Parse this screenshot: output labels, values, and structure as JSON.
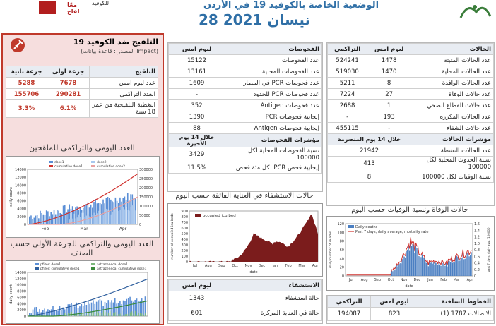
{
  "header": {
    "title": "الوضعية الخاصة بالكوفيد 19 في الأردن",
    "date": "28 نيسان 2021",
    "logo_left_text": "معًا",
    "logo_left_sub": "لقاح",
    "logo_mid_text": "للكوفيد"
  },
  "vaccination": {
    "title": "التلقيح ضد الكوفيد 19",
    "source": "(المصدر : قاعدة بيانات Impact)",
    "table": {
      "headers": [
        "التلقيح",
        "جرعة اولى",
        "جرعة ثانية"
      ],
      "rows": [
        {
          "label": "عدد ليوم امس",
          "dose1": "7678",
          "dose2": "5288"
        },
        {
          "label": "العدد التراكمي",
          "dose1": "290281",
          "dose2": "155706"
        },
        {
          "label": "التغطية التلقيحية من عمر 18 سنة",
          "dose1": "6.1%",
          "dose2": "3.3%"
        }
      ]
    },
    "chart1_title": "العدد اليومي والتراكمي للملقحين",
    "chart1_legend": [
      "dose1",
      "dose2",
      "cumulative dose1",
      "cumulative dose2"
    ],
    "chart1_yticks_left": [
      "14000",
      "12000",
      "10000",
      "8000",
      "6000",
      "4000",
      "2000",
      "0"
    ],
    "chart1_yticks_right": [
      "300000",
      "250000",
      "200000",
      "150000",
      "100000",
      "50000",
      "0"
    ],
    "chart1_xticks": [
      "Feb",
      "Mar",
      "Apr"
    ],
    "chart1_ylabel": "daily count",
    "chart2_title": "العدد اليومي والتراكمي للجرعة الأولى حسب الصنف",
    "chart2_legend": [
      "pfizer: dose1",
      "astrazeneca: dose1",
      "pfizer: cumulative dose1",
      "astrazeneca: cumulative dose1"
    ],
    "chart2_yticks_left": [
      "14000",
      "12000",
      "10000",
      "8000",
      "6000",
      "4000",
      "2000",
      "0"
    ],
    "chart2_ylabel": "daily count"
  },
  "tests": {
    "header": "الفحوصات",
    "subheader": "ليوم امس",
    "rows": [
      {
        "label": "عدد الفحوصات",
        "value": "15122"
      },
      {
        "label": "عدد الفحوصات المحلية",
        "value": "13161"
      },
      {
        "label": "عدد فحوصات PCR في المطار",
        "value": "1609"
      },
      {
        "label": "عدد فحوصات PCR للحدود",
        "value": "-"
      },
      {
        "label": "عدد فحوصات Antigen",
        "value": "352"
      },
      {
        "label": "إيجابية فحوصات PCR",
        "value": "1390"
      },
      {
        "label": "إيجابية فحوصات Antigen",
        "value": "88"
      }
    ],
    "indicators_header": "مؤشرات الفحوصات",
    "indicators_sub": "خلال 14 يوم الأخيرة",
    "indicators": [
      {
        "label": "نسبة الفحوصات المحلية لكل 100000",
        "value": "3429"
      },
      {
        "label": "إيجابية فحص PCR لكل مئة فحص",
        "value": "11.5%"
      }
    ]
  },
  "icu_chart": {
    "title": "حالات الاستشفاء في العناية الفائقة حسب اليوم",
    "legend": "occupied icu bed",
    "ylabel": "number of occupied icu beds",
    "xlabel": "date",
    "yticks": [
      "900",
      "800",
      "700",
      "600",
      "500",
      "400",
      "300",
      "200",
      "100",
      "0"
    ],
    "xticks": [
      "Jul",
      "Aug",
      "Sep",
      "Oct",
      "Nov",
      "Dec",
      "Jan",
      "Feb",
      "Mar",
      "Apr"
    ]
  },
  "hospital": {
    "header": "الاستشفاء",
    "subheader": "ليوم امس",
    "rows": [
      {
        "label": "حالة استشفاء",
        "value": "1343"
      },
      {
        "label": "حالة في العناية المركزة",
        "value": "601"
      }
    ]
  },
  "cases": {
    "header": "الحالات",
    "col_yesterday": "ليوم امس",
    "col_cumulative": "التراكمي",
    "rows": [
      {
        "label": "عدد الحالات المثبتة",
        "yesterday": "1478",
        "cumulative": "524241"
      },
      {
        "label": "عدد الحالات المحلية",
        "yesterday": "1470",
        "cumulative": "519030"
      },
      {
        "label": "عدد الحالات الوافدة",
        "yesterday": "8",
        "cumulative": "5211"
      },
      {
        "label": "عدد حالات الوفاة",
        "yesterday": "27",
        "cumulative": "7224"
      },
      {
        "label": "عدد حالات القطاع الصحي",
        "yesterday": "1",
        "cumulative": "2688"
      },
      {
        "label": "عدد الحالات المكرره",
        "yesterday": "193",
        "cumulative": "-"
      },
      {
        "label": "عدد حالات الشفاء",
        "yesterday": "-",
        "cumulative": "455115"
      }
    ],
    "indicators_header": "مؤشرات الحالات",
    "indicators_sub": "خلال 14 يوم المنصرمة",
    "indicators": [
      {
        "label": "عدد الحالات النشطة",
        "value": "21942"
      },
      {
        "label": "نسبة الحدوث المحلية لكل 100000",
        "value": "413"
      },
      {
        "label": "نسبة الوفيات لكل 100000",
        "value": "8"
      }
    ]
  },
  "deaths_chart": {
    "title": "حالات الوفاة ونسبة الوفيات حسب اليوم",
    "legend": [
      "Daily deaths",
      "Past 7 days, daily average, mortality rate"
    ],
    "ylabel": "daily number of deaths",
    "ylabel_right": "past 7 days, daily avg, /100000",
    "xlabel": "date",
    "yticks": [
      "120",
      "100",
      "80",
      "60",
      "40",
      "20",
      "0"
    ],
    "yticks_right": [
      "1.6",
      "1.4",
      "1.2",
      "1.0",
      "0.8",
      "0.6",
      "0.4",
      "0.2",
      "0"
    ],
    "xticks": [
      "Jul",
      "Aug",
      "Sep",
      "Oct",
      "Nov",
      "Dec",
      "Jan",
      "Feb",
      "Mar",
      "Apr"
    ]
  },
  "hotlines": {
    "header": "الخطوط الساخنة",
    "col_yesterday": "ليوم امس",
    "col_cumulative": "التراكمي",
    "rows": [
      {
        "label": "الاتصالات 1787 (1)",
        "yesterday": "823",
        "cumulative": "194087"
      }
    ]
  },
  "colors": {
    "accent": "#2f6fa6",
    "vacc_border": "#c0392b",
    "vacc_bg": "#f6dede",
    "vacc_red": "#c0392b",
    "icu_fill": "#7b1c1c",
    "deaths_bar": "#4b7fc2",
    "deaths_line": "#d0312d"
  }
}
